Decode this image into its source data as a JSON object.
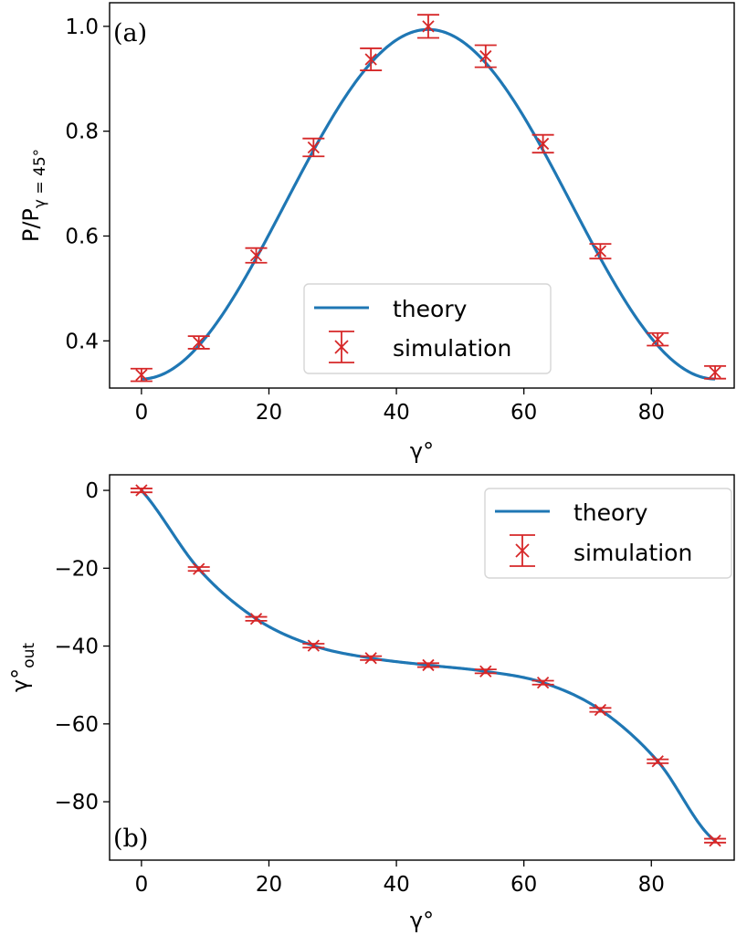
{
  "colors": {
    "theory": "#1f77b4",
    "simulation": "#d62728"
  },
  "chart_data": [
    {
      "panel": "(a)",
      "type": "line",
      "xlabel": "γ°",
      "ylabel": "P/P",
      "ylabel_sub": "γ = 45°",
      "xlim": [
        -5,
        93
      ],
      "ylim": [
        0.31,
        1.045
      ],
      "xticks": [
        0,
        20,
        40,
        60,
        80
      ],
      "yticks": [
        0.4,
        0.6,
        0.8,
        1.0
      ],
      "ytick_labels": [
        "0.4",
        "0.6",
        "0.8",
        "1.0"
      ],
      "legend": {
        "position": "lower-center",
        "theory": "theory",
        "simulation": "simulation"
      },
      "series": [
        {
          "name": "theory",
          "kind": "line",
          "formula": "(1 + 2*sin^2(2x)) / 3",
          "x_range": [
            0,
            90
          ]
        },
        {
          "name": "simulation",
          "kind": "errorbar",
          "x": [
            0,
            9,
            18,
            27,
            36,
            45,
            54,
            63,
            72,
            81,
            90
          ],
          "y": [
            0.335,
            0.397,
            0.563,
            0.769,
            0.937,
            1.0,
            0.943,
            0.776,
            0.571,
            0.403,
            0.34
          ],
          "yerr": [
            0.012,
            0.012,
            0.014,
            0.017,
            0.021,
            0.022,
            0.021,
            0.017,
            0.014,
            0.012,
            0.012
          ]
        }
      ]
    },
    {
      "panel": "(b)",
      "type": "line",
      "xlabel": "γ°",
      "ylabel": "γ°",
      "ylabel_sub": "out",
      "xlim": [
        -5,
        93
      ],
      "ylim": [
        -95,
        4
      ],
      "xticks": [
        0,
        20,
        40,
        60,
        80
      ],
      "yticks": [
        0,
        -20,
        -40,
        -60,
        -80
      ],
      "ytick_labels": [
        "0",
        "−20",
        "−40",
        "−60",
        "−80"
      ],
      "legend": {
        "position": "upper-right",
        "theory": "theory",
        "simulation": "simulation"
      },
      "series": [
        {
          "name": "theory",
          "kind": "line",
          "formula": "-degrees(atan(sqrt(2)*tan(x))) / 2 + ... fitted",
          "x_range": [
            0,
            90
          ]
        },
        {
          "name": "simulation",
          "kind": "errorbar",
          "x": [
            0,
            9,
            18,
            27,
            36,
            45,
            54,
            63,
            72,
            81,
            90
          ],
          "y": [
            0,
            -20.2,
            -33.0,
            -39.9,
            -43.1,
            -44.9,
            -46.5,
            -49.4,
            -56.4,
            -69.6,
            -90.0
          ],
          "yerr": [
            0.5,
            0.5,
            0.5,
            0.5,
            0.5,
            0.5,
            0.5,
            0.5,
            0.5,
            0.5,
            0.5
          ]
        }
      ]
    }
  ]
}
